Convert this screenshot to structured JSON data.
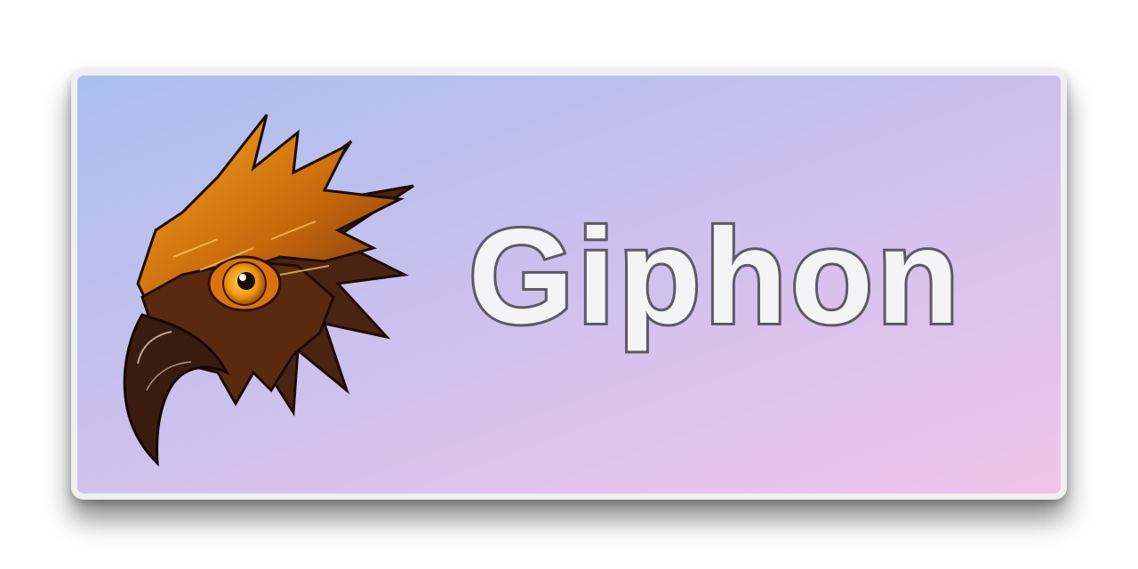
{
  "brand": {
    "name": "Giphon"
  },
  "logo": {
    "icon": "eagle-head-icon"
  },
  "colors": {
    "gradient_start": "#a9bff0",
    "gradient_end": "#f1c3ea",
    "text_fill": "#f4f4f6",
    "text_outline": "#5d5a66",
    "eagle_orange": "#e08a12",
    "eagle_dark": "#3a1c0e"
  }
}
